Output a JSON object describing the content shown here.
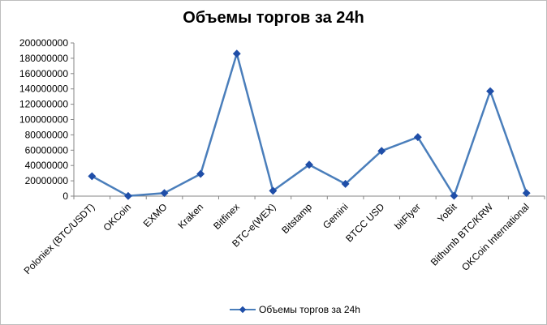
{
  "chart_data": {
    "type": "line",
    "title": "Объемы торгов за 24h",
    "xlabel": "",
    "ylabel": "",
    "categories": [
      "Poloniex (BTC/USDT)",
      "OKCoin",
      "EXMO",
      "Kraken",
      "Bitfinex",
      "BTC-e(WEX)",
      "Bitstamp",
      "Gemini",
      "BTCC USD",
      "bitFlyer",
      "YoBit",
      "Bithumb BTC/KRW",
      "OKCoin International"
    ],
    "series": [
      {
        "name": "Объемы торгов за 24h",
        "color": "#4a7ebb",
        "marker_color": "#1f4ea8",
        "values": [
          26000000,
          200000,
          4000000,
          29000000,
          186000000,
          7000000,
          41000000,
          16000000,
          59000000,
          77000000,
          500000,
          137000000,
          4000000
        ]
      }
    ],
    "ylim": [
      0,
      200000000
    ],
    "yticks": [
      "0",
      "20000000",
      "40000000",
      "60000000",
      "80000000",
      "100000000",
      "120000000",
      "140000000",
      "160000000",
      "180000000",
      "200000000"
    ],
    "grid": false,
    "legend": "bottom"
  }
}
